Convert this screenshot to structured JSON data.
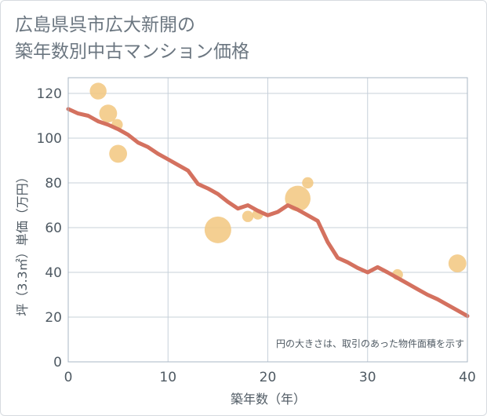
{
  "title_lines": [
    "広島県呉市広大新開の",
    "築年数別中古マンション価格"
  ],
  "colors": {
    "line": "#d4715f",
    "bubble": "#f2c77f",
    "grid": "#c7d0da",
    "plot_border": "#aab7c4"
  },
  "chart_data": {
    "type": "line",
    "title": "広島県呉市広大新開の築年数別中古マンション価格",
    "xlabel": "築年数（年）",
    "ylabel": "坪（3.3㎡）単価（万円）",
    "xlim": [
      0,
      40
    ],
    "ylim": [
      0,
      127
    ],
    "xticks": [
      0,
      10,
      20,
      30,
      40
    ],
    "yticks": [
      0,
      20,
      40,
      60,
      80,
      100,
      120
    ],
    "grid": true,
    "note": "円の大きさは、取引のあった物件面積を示す",
    "series": [
      {
        "x": [
          0,
          1,
          2,
          3,
          4,
          5,
          6,
          7,
          8,
          9,
          10,
          11,
          12,
          13,
          14,
          15,
          16,
          17,
          18,
          19,
          20,
          21,
          22,
          23,
          24,
          25,
          26,
          27,
          28,
          29,
          30,
          31,
          32,
          33,
          34,
          35,
          36,
          37,
          38,
          39,
          40
        ],
        "y": [
          113,
          111,
          110,
          107.5,
          106,
          104,
          101.5,
          98,
          96,
          93,
          90.5,
          88,
          85.5,
          79.5,
          77.5,
          75,
          71.5,
          68.5,
          70,
          67.5,
          65.5,
          67,
          70,
          68,
          65.5,
          63,
          53.5,
          46.5,
          44.5,
          42,
          40,
          42.3,
          40,
          37.5,
          35,
          32.5,
          30,
          28,
          25.5,
          23,
          20.5
        ]
      }
    ],
    "bubbles": [
      {
        "x": 3,
        "y": 121,
        "size": 0.55
      },
      {
        "x": 4,
        "y": 111,
        "size": 0.6
      },
      {
        "x": 4.9,
        "y": 106,
        "size": 0.3
      },
      {
        "x": 5,
        "y": 93,
        "size": 0.6
      },
      {
        "x": 15,
        "y": 59,
        "size": 1.0
      },
      {
        "x": 18,
        "y": 65,
        "size": 0.3
      },
      {
        "x": 19,
        "y": 66,
        "size": 0.28
      },
      {
        "x": 23,
        "y": 73,
        "size": 0.95
      },
      {
        "x": 24,
        "y": 80,
        "size": 0.3
      },
      {
        "x": 33,
        "y": 39,
        "size": 0.28
      },
      {
        "x": 39,
        "y": 44,
        "size": 0.6
      }
    ]
  }
}
